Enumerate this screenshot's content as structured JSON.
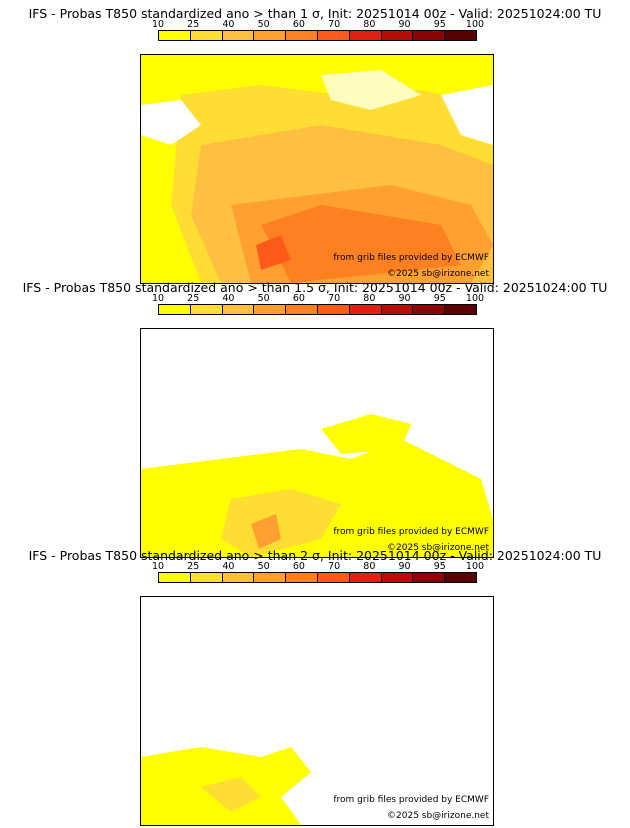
{
  "colorbar": {
    "ticks": [
      "10",
      "25",
      "40",
      "50",
      "60",
      "70",
      "80",
      "90",
      "95",
      "100"
    ],
    "colors": [
      "#ffff00",
      "#ffdd33",
      "#ffc040",
      "#ffa030",
      "#ff8020",
      "#ff5a1a",
      "#e02010",
      "#b80c08",
      "#8a0404",
      "#5a0000"
    ]
  },
  "panels": [
    {
      "title": "IFS - Probas T850  standardized ano > than 1 σ, Init: 20251014 00z - Valid: 20251024:00 TU"
    },
    {
      "title": "IFS - Probas T850  standardized ano > than 1.5 σ, Init: 20251014 00z - Valid: 20251024:00 TU"
    },
    {
      "title": "IFS - Probas T850  standardized ano > than 2 σ, Init: 20251014 00z - Valid: 20251024:00 TU"
    }
  ],
  "credits": {
    "source": "from grib files provided by ECMWF",
    "copyright": "©2025 sb@irizone.net"
  }
}
